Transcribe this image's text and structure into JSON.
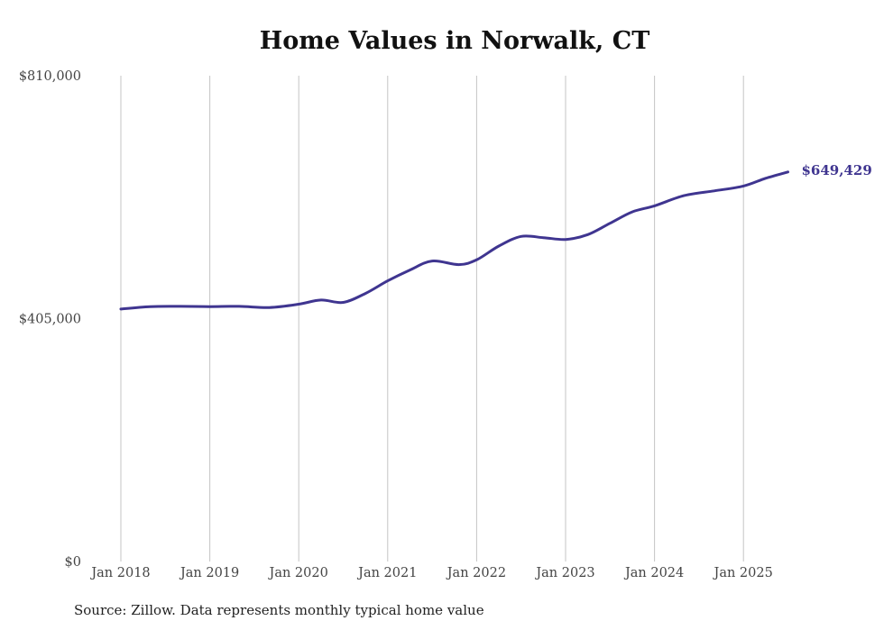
{
  "chart_data": {
    "type": "line",
    "title": "Home Values in Norwalk, CT",
    "xlabel": "",
    "ylabel": "",
    "ylim": [
      0,
      810000
    ],
    "y_ticks": [
      {
        "value": 0,
        "label": "$0"
      },
      {
        "value": 405000,
        "label": "$405,000"
      },
      {
        "value": 810000,
        "label": "$810,000"
      }
    ],
    "x_ticks": [
      {
        "value": 2018,
        "label": "Jan 2018"
      },
      {
        "value": 2019,
        "label": "Jan 2019"
      },
      {
        "value": 2020,
        "label": "Jan 2020"
      },
      {
        "value": 2021,
        "label": "Jan 2021"
      },
      {
        "value": 2022,
        "label": "Jan 2022"
      },
      {
        "value": 2023,
        "label": "Jan 2023"
      },
      {
        "value": 2024,
        "label": "Jan 2024"
      },
      {
        "value": 2025,
        "label": "Jan 2025"
      }
    ],
    "grid": "vertical",
    "line_color": "#3f3590",
    "series": [
      {
        "points": [
          {
            "x": 2018.0,
            "y": 421000
          },
          {
            "x": 2018.33,
            "y": 425000
          },
          {
            "x": 2018.67,
            "y": 425500
          },
          {
            "x": 2019.0,
            "y": 425000
          },
          {
            "x": 2019.33,
            "y": 425500
          },
          {
            "x": 2019.67,
            "y": 423500
          },
          {
            "x": 2020.0,
            "y": 429000
          },
          {
            "x": 2020.25,
            "y": 436000
          },
          {
            "x": 2020.5,
            "y": 432000
          },
          {
            "x": 2020.75,
            "y": 447000
          },
          {
            "x": 2021.0,
            "y": 468000
          },
          {
            "x": 2021.25,
            "y": 486000
          },
          {
            "x": 2021.5,
            "y": 501000
          },
          {
            "x": 2021.8,
            "y": 495000
          },
          {
            "x": 2022.0,
            "y": 503000
          },
          {
            "x": 2022.25,
            "y": 526000
          },
          {
            "x": 2022.5,
            "y": 542000
          },
          {
            "x": 2022.75,
            "y": 540000
          },
          {
            "x": 2023.0,
            "y": 537000
          },
          {
            "x": 2023.25,
            "y": 545000
          },
          {
            "x": 2023.5,
            "y": 564000
          },
          {
            "x": 2023.75,
            "y": 583000
          },
          {
            "x": 2024.0,
            "y": 593000
          },
          {
            "x": 2024.33,
            "y": 610000
          },
          {
            "x": 2024.67,
            "y": 618000
          },
          {
            "x": 2025.0,
            "y": 626000
          },
          {
            "x": 2025.25,
            "y": 639000
          },
          {
            "x": 2025.5,
            "y": 649429
          }
        ]
      }
    ],
    "end_label": "$649,429",
    "source": "Source: Zillow. Data represents monthly typical home value"
  }
}
